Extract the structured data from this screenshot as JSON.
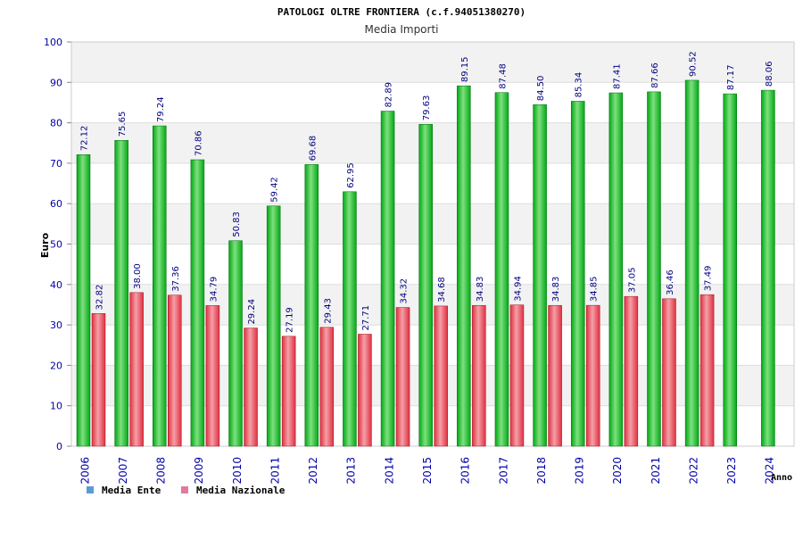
{
  "chart_data": {
    "type": "bar",
    "title": "PATOLOGI OLTRE FRONTIERA (c.f.94051380270)",
    "subtitle": "Media Importi",
    "ylabel": "Euro",
    "xlabel": "Anno",
    "ylim": [
      0,
      100
    ],
    "yticks": [
      "0",
      "10",
      "20",
      "30",
      "40",
      "50",
      "60",
      "70",
      "80",
      "90",
      "100"
    ],
    "grid": true,
    "legend_position": "bottom-left",
    "categories": [
      "2006",
      "2007",
      "2008",
      "2009",
      "2010",
      "2011",
      "2012",
      "2013",
      "2014",
      "2015",
      "2016",
      "2017",
      "2018",
      "2019",
      "2020",
      "2021",
      "2022",
      "2023",
      "2024"
    ],
    "series": [
      {
        "name": "Media Ente",
        "legend_color": "#5b9bd5",
        "bar_color": "#00a814",
        "values": [
          72.12,
          75.65,
          79.24,
          70.86,
          50.83,
          59.42,
          69.68,
          62.95,
          82.89,
          79.63,
          89.15,
          87.48,
          84.5,
          85.34,
          87.41,
          87.66,
          90.52,
          87.17,
          88.06
        ],
        "labels": [
          "72.12",
          "75.65",
          "79.24",
          "70.86",
          "50.83",
          "59.42",
          "69.68",
          "62.95",
          "82.89",
          "79.63",
          "89.15",
          "87.48",
          "84.50",
          "85.34",
          "87.41",
          "87.66",
          "90.52",
          "87.17",
          "88.06"
        ]
      },
      {
        "name": "Media Nazionale",
        "legend_color": "#e07aa0",
        "bar_color": "#e03040",
        "values": [
          32.82,
          38.0,
          37.36,
          34.79,
          29.24,
          27.19,
          29.43,
          27.71,
          34.32,
          34.68,
          34.83,
          34.94,
          34.83,
          34.85,
          37.05,
          36.46,
          37.49,
          null,
          null
        ],
        "labels": [
          "32.82",
          "38.00",
          "37.36",
          "34.79",
          "29.24",
          "27.19",
          "29.43",
          "27.71",
          "34.32",
          "34.68",
          "34.83",
          "34.94",
          "34.83",
          "34.85",
          "37.05",
          "36.46",
          "37.49",
          "",
          ""
        ]
      }
    ],
    "colors": {
      "axis_text": "#0000aa",
      "grid_band": "#f2f2f2",
      "grid_line": "#dddddd",
      "label_text": "#000080"
    }
  }
}
